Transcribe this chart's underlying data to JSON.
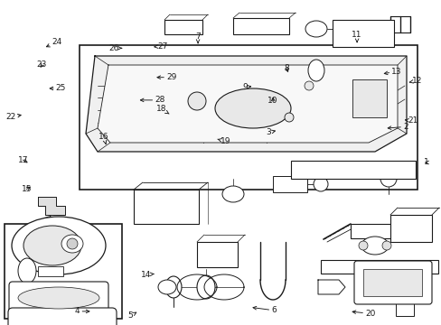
{
  "bg_color": "#ffffff",
  "line_color": "#1a1a1a",
  "figsize": [
    4.89,
    3.6
  ],
  "dpi": 100,
  "labels": {
    "1": [
      0.955,
      0.5,
      0.965,
      0.5
    ],
    "2": [
      0.87,
      0.395,
      0.918,
      0.39
    ],
    "3": [
      0.63,
      0.4,
      0.608,
      0.408
    ],
    "4": [
      0.21,
      0.958,
      0.175,
      0.958
    ],
    "5": [
      0.31,
      0.96,
      0.295,
      0.972
    ],
    "6": [
      0.565,
      0.945,
      0.62,
      0.955
    ],
    "7": [
      0.448,
      0.142,
      0.448,
      0.112
    ],
    "8": [
      0.655,
      0.23,
      0.648,
      0.21
    ],
    "9": [
      0.575,
      0.265,
      0.555,
      0.268
    ],
    "10": [
      0.618,
      0.29,
      0.618,
      0.31
    ],
    "11": [
      0.808,
      0.132,
      0.808,
      0.108
    ],
    "12": [
      0.92,
      0.255,
      0.945,
      0.248
    ],
    "13": [
      0.862,
      0.228,
      0.898,
      0.22
    ],
    "14": [
      0.355,
      0.842,
      0.33,
      0.845
    ],
    "15": [
      0.075,
      0.57,
      0.06,
      0.582
    ],
    "16": [
      0.24,
      0.445,
      0.235,
      0.422
    ],
    "17": [
      0.068,
      0.505,
      0.052,
      0.492
    ],
    "18": [
      0.388,
      0.355,
      0.365,
      0.335
    ],
    "19": [
      0.492,
      0.428,
      0.51,
      0.435
    ],
    "20": [
      0.79,
      0.958,
      0.838,
      0.965
    ],
    "21": [
      0.91,
      0.368,
      0.935,
      0.372
    ],
    "22": [
      0.055,
      0.352,
      0.025,
      0.36
    ],
    "23": [
      0.088,
      0.215,
      0.095,
      0.2
    ],
    "24": [
      0.098,
      0.148,
      0.128,
      0.13
    ],
    "25": [
      0.105,
      0.272,
      0.138,
      0.272
    ],
    "26": [
      0.282,
      0.148,
      0.258,
      0.148
    ],
    "27": [
      0.342,
      0.145,
      0.368,
      0.142
    ],
    "28": [
      0.31,
      0.308,
      0.362,
      0.308
    ],
    "29": [
      0.348,
      0.238,
      0.388,
      0.238
    ]
  }
}
